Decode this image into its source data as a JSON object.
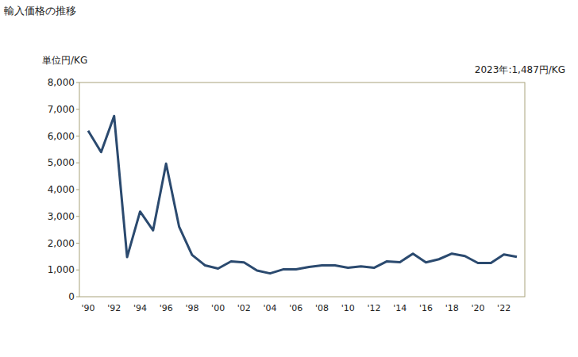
{
  "chart_data": {
    "type": "line",
    "title": "輸入価格の推移",
    "y_label": "単位円/KG",
    "annotation": "2023年:1,487円/KG",
    "categories": [
      "'90",
      null,
      "'92",
      null,
      "'94",
      null,
      "'96",
      null,
      "'98",
      null,
      "'00",
      null,
      "'02",
      null,
      "'04",
      null,
      "'06",
      null,
      "'08",
      null,
      "'10",
      null,
      "'12",
      null,
      "'14",
      null,
      "'16",
      null,
      "'18",
      null,
      "'20",
      null,
      "'22",
      null
    ],
    "values": [
      6200,
      5400,
      6750,
      1480,
      3180,
      2480,
      4970,
      2620,
      1560,
      1170,
      1050,
      1320,
      1280,
      980,
      870,
      1020,
      1020,
      1110,
      1170,
      1170,
      1080,
      1130,
      1080,
      1320,
      1290,
      1610,
      1280,
      1400,
      1610,
      1520,
      1260,
      1260,
      1580,
      1487
    ],
    "color": "#2b4a6f",
    "ylim": [
      0,
      8000
    ],
    "yticks": [
      0,
      {
        "value": 1000,
        "label": "1,000"
      },
      {
        "value": 2000,
        "label": "2,000"
      },
      {
        "value": 3000,
        "label": "3,000"
      },
      {
        "value": 4000,
        "label": "4,000"
      },
      {
        "value": 5000,
        "label": "5,000"
      },
      {
        "value": 6000,
        "label": "6,000"
      },
      {
        "value": 7000,
        "label": "7,000"
      },
      {
        "value": 8000,
        "label": "8,000"
      }
    ],
    "grid": false
  }
}
